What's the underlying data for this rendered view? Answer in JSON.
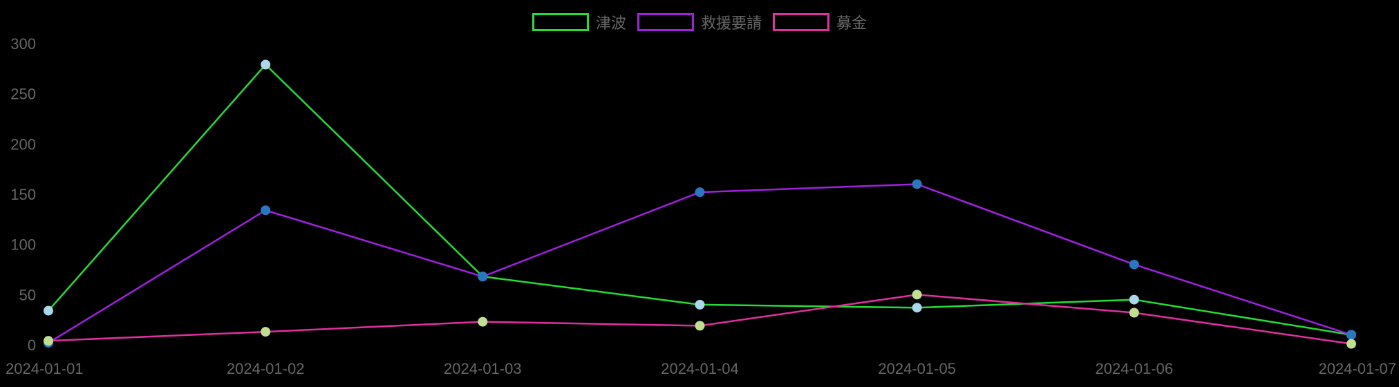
{
  "chart_data": {
    "type": "line",
    "title": "",
    "xlabel": "",
    "ylabel": "",
    "categories": [
      "2024-01-01",
      "2024-01-02",
      "2024-01-03",
      "2024-01-04",
      "2024-01-05",
      "2024-01-06",
      "2024-01-07"
    ],
    "ylim": [
      0,
      300
    ],
    "yticks": [
      0,
      50,
      100,
      150,
      200,
      250,
      300
    ],
    "grid": false,
    "legend_position": "top",
    "series": [
      {
        "name": "津波",
        "color": "#22dd33",
        "point_color": "#a8d8ea",
        "values": [
          34,
          279,
          68,
          40,
          37,
          45,
          10
        ]
      },
      {
        "name": "救援要請",
        "color": "#a020e0",
        "point_color": "#2878c0",
        "values": [
          2,
          134,
          68,
          152,
          160,
          80,
          10
        ]
      },
      {
        "name": "募金",
        "color": "#e030a0",
        "point_color": "#c0e090",
        "values": [
          4,
          13,
          23,
          19,
          50,
          32,
          1
        ]
      }
    ]
  }
}
